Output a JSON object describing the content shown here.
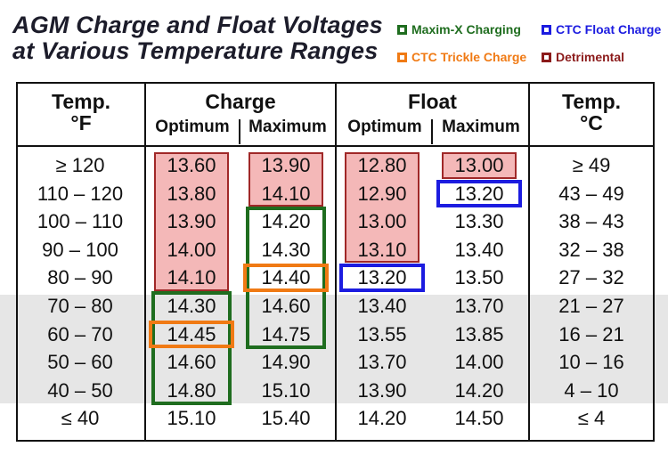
{
  "title": {
    "line1": "AGM Charge and Float Voltages",
    "line2": "at Various Temperature Ranges"
  },
  "legend": [
    {
      "label": "Maxim-X Charging",
      "color": "#1f6d1f"
    },
    {
      "label": "CTC Float Charge",
      "color": "#1c1ce0"
    },
    {
      "label": "CTC Trickle Charge",
      "color": "#f07a14"
    },
    {
      "label": "Detrimental",
      "color": "#8b1a1a"
    }
  ],
  "headers": {
    "temp_f": [
      "Temp.",
      "°F"
    ],
    "charge": "Charge",
    "float": "Float",
    "temp_c": [
      "Temp.",
      "°C"
    ],
    "optimum": "Optimum",
    "maximum": "Maximum"
  },
  "rows": [
    {
      "f": "≥ 120",
      "charge_opt": "13.60",
      "charge_max": "13.90",
      "float_opt": "12.80",
      "float_max": "13.00",
      "c": "≥ 49"
    },
    {
      "f": "110 – 120",
      "charge_opt": "13.80",
      "charge_max": "14.10",
      "float_opt": "12.90",
      "float_max": "13.20",
      "c": "43 – 49"
    },
    {
      "f": "100 – 110",
      "charge_opt": "13.90",
      "charge_max": "14.20",
      "float_opt": "13.00",
      "float_max": "13.30",
      "c": "38 – 43"
    },
    {
      "f": "90 – 100",
      "charge_opt": "14.00",
      "charge_max": "14.30",
      "float_opt": "13.10",
      "float_max": "13.40",
      "c": "32 – 38"
    },
    {
      "f": "80 – 90",
      "charge_opt": "14.10",
      "charge_max": "14.40",
      "float_opt": "13.20",
      "float_max": "13.50",
      "c": "27 – 32"
    },
    {
      "f": "70 – 80",
      "charge_opt": "14.30",
      "charge_max": "14.60",
      "float_opt": "13.40",
      "float_max": "13.70",
      "c": "21 – 27"
    },
    {
      "f": "60 – 70",
      "charge_opt": "14.45",
      "charge_max": "14.75",
      "float_opt": "13.55",
      "float_max": "13.85",
      "c": "16 – 21"
    },
    {
      "f": "50 – 60",
      "charge_opt": "14.60",
      "charge_max": "14.90",
      "float_opt": "13.70",
      "float_max": "14.00",
      "c": "10 – 16"
    },
    {
      "f": "40 – 50",
      "charge_opt": "14.80",
      "charge_max": "15.10",
      "float_opt": "13.90",
      "float_max": "14.20",
      "c": "4 – 10"
    },
    {
      "f": "≤ 40",
      "charge_opt": "15.10",
      "charge_max": "15.40",
      "float_opt": "14.20",
      "float_max": "14.50",
      "c": "≤ 4"
    }
  ],
  "highlights": {
    "detrimental": [
      {
        "column": "charge_opt",
        "rows": [
          0,
          4
        ]
      },
      {
        "column": "charge_max",
        "rows": [
          0,
          1
        ]
      },
      {
        "column": "float_opt",
        "rows": [
          0,
          3
        ]
      },
      {
        "column": "float_max",
        "rows": [
          0,
          0
        ]
      }
    ],
    "maxim_x_charging": [
      {
        "column": "charge_opt",
        "rows": [
          5,
          8
        ]
      },
      {
        "column": "charge_max",
        "rows": [
          2,
          6
        ]
      }
    ],
    "ctc_trickle_charge": [
      {
        "column": "charge_opt",
        "rows": [
          6,
          6
        ]
      },
      {
        "column": "charge_max",
        "rows": [
          4,
          4
        ]
      }
    ],
    "ctc_float_charge": [
      {
        "column": "float_opt",
        "rows": [
          4,
          4
        ]
      },
      {
        "column": "float_max",
        "rows": [
          1,
          1
        ]
      }
    ]
  }
}
